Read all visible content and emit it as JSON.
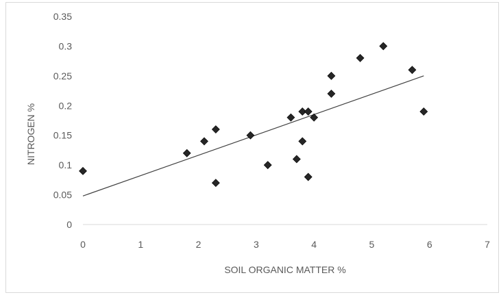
{
  "chart_data": {
    "type": "scatter",
    "title": "",
    "xlabel": "SOIL  ORGANIC MATTER %",
    "ylabel": "NITROGEN %",
    "xlim": [
      0,
      7
    ],
    "ylim": [
      0,
      0.35
    ],
    "x_ticks": [
      "0",
      "1",
      "2",
      "3",
      "4",
      "5",
      "6",
      "7"
    ],
    "y_ticks": [
      "0",
      "0.05",
      "0.1",
      "0.15",
      "0.2",
      "0.25",
      "0.3",
      "0.35"
    ],
    "grid": false,
    "marker": "diamond",
    "marker_color": "#262626",
    "trendline": {
      "type": "linear",
      "x": [
        0,
        5.9
      ],
      "y": [
        0.048,
        0.25
      ],
      "color": "#404040"
    },
    "points": [
      {
        "x": 0,
        "y": 0.09
      },
      {
        "x": 1.8,
        "y": 0.12
      },
      {
        "x": 2.1,
        "y": 0.14
      },
      {
        "x": 2.3,
        "y": 0.16
      },
      {
        "x": 2.3,
        "y": 0.07
      },
      {
        "x": 2.9,
        "y": 0.15
      },
      {
        "x": 3.2,
        "y": 0.1
      },
      {
        "x": 3.6,
        "y": 0.18
      },
      {
        "x": 3.7,
        "y": 0.11
      },
      {
        "x": 3.8,
        "y": 0.19
      },
      {
        "x": 3.8,
        "y": 0.14
      },
      {
        "x": 3.9,
        "y": 0.19
      },
      {
        "x": 3.9,
        "y": 0.08
      },
      {
        "x": 4.0,
        "y": 0.18
      },
      {
        "x": 4.3,
        "y": 0.25
      },
      {
        "x": 4.3,
        "y": 0.22
      },
      {
        "x": 4.8,
        "y": 0.28
      },
      {
        "x": 5.2,
        "y": 0.3
      },
      {
        "x": 5.7,
        "y": 0.26
      },
      {
        "x": 5.9,
        "y": 0.19
      }
    ]
  }
}
